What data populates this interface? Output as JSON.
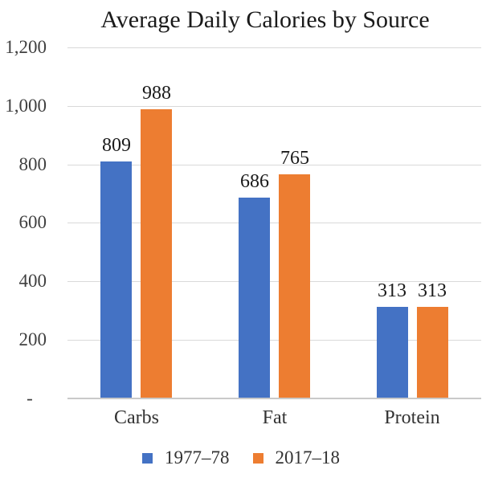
{
  "chart_data": {
    "type": "bar",
    "title": "Average Daily Calories by Source",
    "categories": [
      "Carbs",
      "Fat",
      "Protein"
    ],
    "series": [
      {
        "name": "1977–78",
        "color": "#4472C4",
        "values": [
          809,
          686,
          313
        ]
      },
      {
        "name": "2017–18",
        "color": "#ED7D31",
        "values": [
          988,
          765,
          313
        ]
      }
    ],
    "ylim": [
      0,
      1200
    ],
    "yticks": [
      {
        "value": 0,
        "label": "-   "
      },
      {
        "value": 200,
        "label": "200"
      },
      {
        "value": 400,
        "label": "400"
      },
      {
        "value": 600,
        "label": "600"
      },
      {
        "value": 800,
        "label": "800"
      },
      {
        "value": 1000,
        "label": "1,000"
      },
      {
        "value": 1200,
        "label": "1,200"
      }
    ],
    "grid": "horizontal",
    "legend_position": "bottom",
    "data_labels": true
  }
}
